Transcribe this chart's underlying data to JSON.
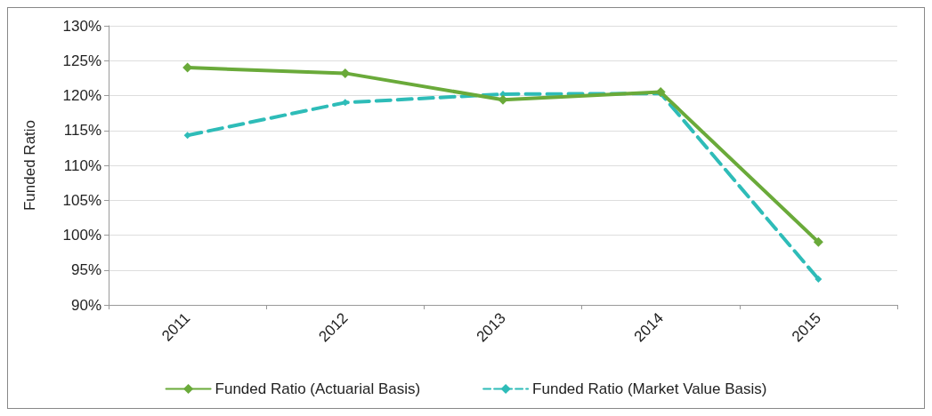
{
  "chart_data": {
    "type": "line",
    "ylabel": "Funded Ratio",
    "categories": [
      "2011",
      "2012",
      "2013",
      "2014",
      "2015"
    ],
    "series": [
      {
        "name": "Funded Ratio (Actuarial Basis)",
        "color": "#6aaa3a",
        "line_style": "solid",
        "values": [
          124,
          123.2,
          119.4,
          120.5,
          99
        ]
      },
      {
        "name": "Funded Ratio (Market Value Basis)",
        "color": "#2ebcb8",
        "line_style": "dashed",
        "values": [
          114.3,
          119,
          120.2,
          120.3,
          93.7
        ]
      }
    ],
    "ylim": [
      90,
      130
    ],
    "yticks": [
      {
        "value": 90,
        "label": "90%"
      },
      {
        "value": 95,
        "label": "95%"
      },
      {
        "value": 100,
        "label": "100%"
      },
      {
        "value": 105,
        "label": "105%"
      },
      {
        "value": 110,
        "label": "110%"
      },
      {
        "value": 115,
        "label": "115%"
      },
      {
        "value": 120,
        "label": "120%"
      },
      {
        "value": 125,
        "label": "125%"
      },
      {
        "value": 130,
        "label": "130%"
      }
    ],
    "grid": "y",
    "legend": "bottom",
    "marker": "diamond"
  }
}
